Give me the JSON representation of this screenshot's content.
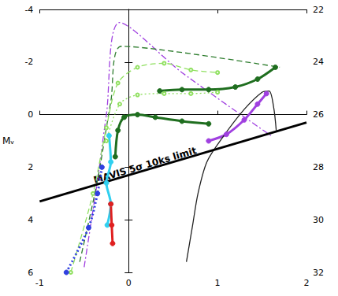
{
  "chart_data": {
    "type": "line",
    "y_label": "Mᵥ",
    "xlim": [
      -1,
      2
    ],
    "xticks": [
      -1,
      0,
      1,
      2
    ],
    "ylim": [
      6,
      -4
    ],
    "yticks": [
      -4,
      -2,
      0,
      2,
      4,
      6
    ],
    "y2lim": [
      32,
      22
    ],
    "y2ticks": [
      22,
      24,
      26,
      28,
      30,
      32
    ],
    "grid": false,
    "series": [
      {
        "color": "#a040e0",
        "line_style": "dashdot",
        "marker": "none",
        "values": [
          [
            -0.5,
            5.8
          ],
          [
            -0.35,
            2.5
          ],
          [
            -0.25,
            0
          ],
          [
            -0.1,
            -3.5
          ],
          [
            0.6,
            -1.6
          ],
          [
            1.6,
            0.8
          ]
        ]
      },
      {
        "color": "#2e7d2e",
        "line_style": "dashed",
        "marker": "none",
        "values": [
          [
            -0.55,
            5.6
          ],
          [
            -0.35,
            2.5
          ],
          [
            -0.2,
            -0.5
          ],
          [
            -0.08,
            -2.6
          ],
          [
            1.7,
            -1.8
          ]
        ]
      },
      {
        "color": "#90e060",
        "line_style": "dashed",
        "marker": "open_circle",
        "values": [
          [
            -0.65,
            6.0
          ],
          [
            -0.4,
            3.0
          ],
          [
            -0.25,
            0.5
          ],
          [
            -0.12,
            -1.2
          ],
          [
            0.1,
            -1.8
          ],
          [
            0.4,
            -1.95
          ],
          [
            0.7,
            -1.7
          ],
          [
            1.0,
            -1.6
          ]
        ]
      },
      {
        "color": "#90e060",
        "line_style": "dotted",
        "marker": "open_circle",
        "values": [
          [
            -0.25,
            1.0
          ],
          [
            -0.1,
            -0.4
          ],
          [
            0.1,
            -0.75
          ],
          [
            0.4,
            -0.8
          ],
          [
            0.7,
            -0.8
          ],
          [
            1.0,
            -0.85
          ]
        ]
      },
      {
        "color": "#1f6e1f",
        "line_style": "solid",
        "marker": "circle",
        "values": [
          [
            0.35,
            -0.9
          ],
          [
            0.6,
            -0.95
          ],
          [
            0.9,
            -0.95
          ],
          [
            1.2,
            -1.05
          ],
          [
            1.45,
            -1.35
          ],
          [
            1.65,
            -1.8
          ]
        ]
      },
      {
        "color": "#1f6e1f",
        "line_style": "solid",
        "marker": "circle",
        "values": [
          [
            -0.15,
            1.6
          ],
          [
            -0.12,
            0.6
          ],
          [
            -0.05,
            0.1
          ],
          [
            0.1,
            0.0
          ],
          [
            0.3,
            0.1
          ],
          [
            0.6,
            0.25
          ],
          [
            0.9,
            0.35
          ]
        ]
      },
      {
        "color": "#a040e0",
        "line_style": "solid",
        "marker": "circle",
        "values": [
          [
            0.9,
            1.0
          ],
          [
            1.1,
            0.75
          ],
          [
            1.3,
            0.2
          ],
          [
            1.45,
            -0.4
          ],
          [
            1.55,
            -0.8
          ]
        ]
      },
      {
        "color": "#222222",
        "line_style": "solid",
        "marker": "none",
        "values": [
          [
            0.65,
            5.6
          ],
          [
            0.72,
            4.2
          ],
          [
            0.78,
            3.0
          ],
          [
            0.88,
            1.8
          ],
          [
            1.05,
            0.9
          ],
          [
            1.3,
            -0.2
          ],
          [
            1.5,
            -0.85
          ],
          [
            1.58,
            -0.9
          ],
          [
            1.63,
            -0.3
          ],
          [
            1.66,
            0.6
          ]
        ]
      },
      {
        "color": "#30d0f0",
        "line_style": "solid",
        "marker": "circle",
        "values": [
          [
            -0.22,
            0.8
          ],
          [
            -0.2,
            1.8
          ],
          [
            -0.25,
            2.6
          ],
          [
            -0.2,
            3.4
          ],
          [
            -0.24,
            4.2
          ]
        ]
      },
      {
        "color": "#3040e0",
        "line_style": "dotted",
        "marker": "circle",
        "values": [
          [
            -0.7,
            6.0
          ],
          [
            -0.45,
            4.3
          ],
          [
            -0.35,
            3.0
          ],
          [
            -0.3,
            2.0
          ]
        ]
      },
      {
        "color": "#e02020",
        "line_style": "solid",
        "marker": "circle",
        "values": [
          [
            -0.2,
            3.4
          ],
          [
            -0.19,
            4.2
          ],
          [
            -0.18,
            4.9
          ]
        ]
      }
    ],
    "limit_line": {
      "color": "#000000",
      "values": [
        [
          -1,
          3.3
        ],
        [
          2,
          0.3
        ]
      ],
      "label": "MAVIS 5σ 10ks limit",
      "label_x": 0.2
    }
  }
}
